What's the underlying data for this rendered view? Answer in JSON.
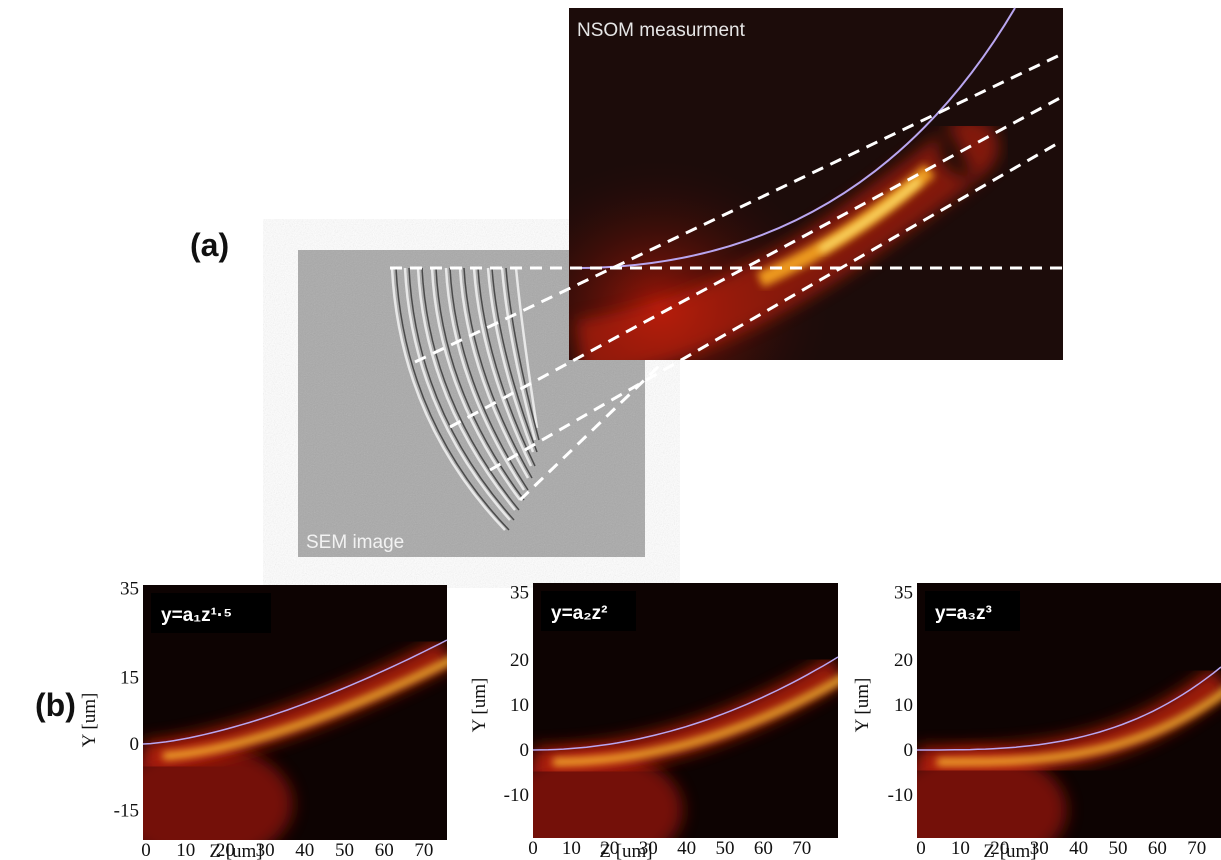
{
  "panel_a": {
    "label": "(a)",
    "nsom_label": "NSOM measurment",
    "sem_label": "SEM image"
  },
  "panel_b": {
    "label": "(b)",
    "plots": [
      {
        "equation": "y=a₁z¹·⁵",
        "xlabel": "Z [um]",
        "ylabel": "Y [um]",
        "xticks": [
          0,
          10,
          20,
          30,
          40,
          50,
          60,
          70
        ],
        "yticks": [
          35,
          15,
          0,
          -15
        ]
      },
      {
        "equation": "y=a₂z²",
        "xlabel": "Z [um]",
        "ylabel": "Y [um]",
        "xticks": [
          0,
          10,
          20,
          30,
          40,
          50,
          60,
          70
        ],
        "yticks": [
          35,
          20,
          10,
          0,
          -10
        ]
      },
      {
        "equation": "y=a₃z³",
        "xlabel": "Z [um]",
        "ylabel": "Y [um]",
        "xticks": [
          0,
          10,
          20,
          30,
          40,
          50,
          60,
          70
        ],
        "yticks": [
          35,
          20,
          10,
          0,
          -10
        ]
      }
    ]
  }
}
